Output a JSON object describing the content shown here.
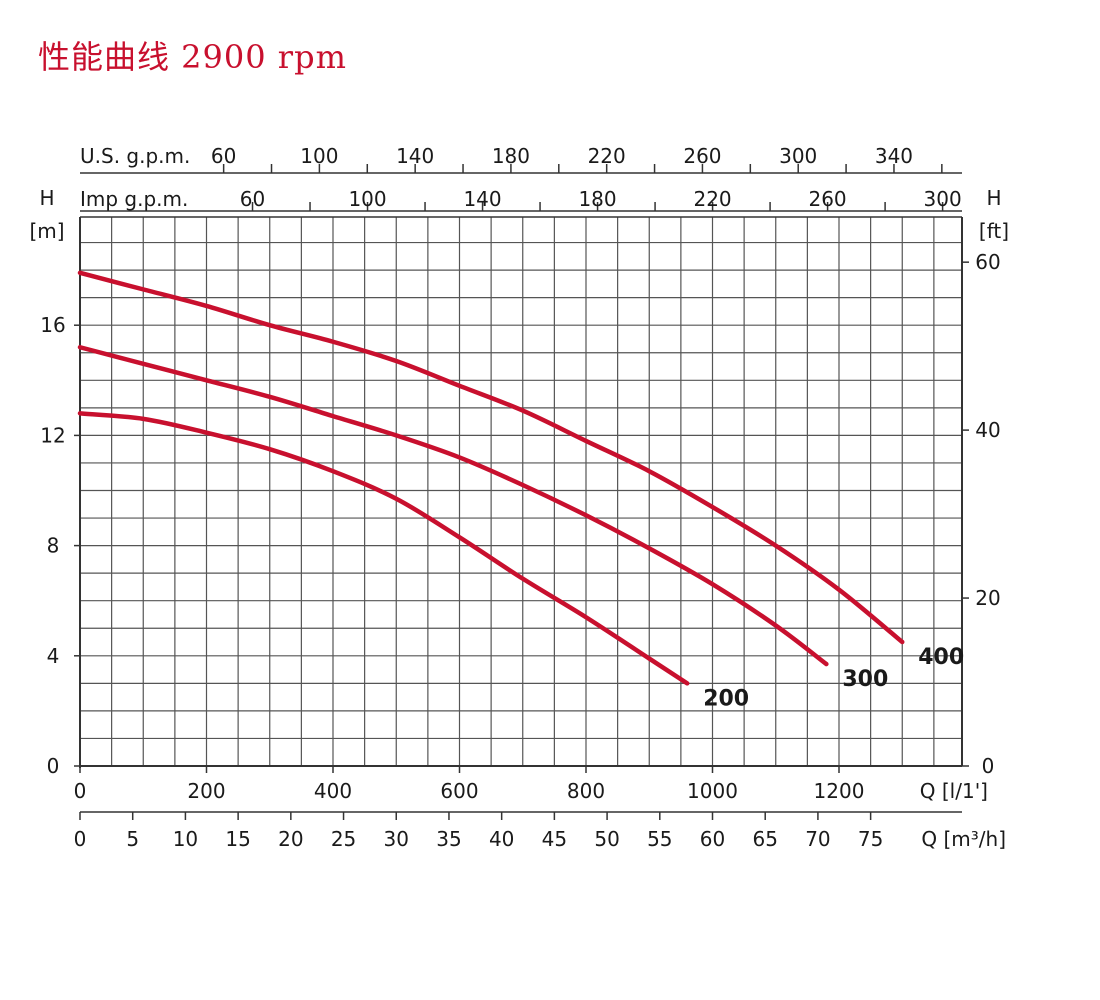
{
  "title": "性能曲线 2900 rpm",
  "colors": {
    "curve": "#c8102e",
    "grid": "#555555",
    "title": "#c8102e"
  },
  "chart_data": {
    "type": "line",
    "title": "性能曲线 2900 rpm",
    "xlabel": "Q [l/1']",
    "xlabel2": "Q [m³/h]",
    "ylabel": "H [m]",
    "ylabel_right": "H [ft]",
    "xlim": [
      0,
      1440
    ],
    "ylim": [
      0,
      18.5
    ],
    "grid": true,
    "x_ticks": [
      "0",
      "200",
      "400",
      "600",
      "800",
      "1000",
      "1200"
    ],
    "m3h_ticks": [
      "0",
      "5",
      "10",
      "15",
      "20",
      "25",
      "30",
      "35",
      "40",
      "45",
      "50",
      "55",
      "60",
      "65",
      "70",
      "75"
    ],
    "y_ticks": [
      "0",
      "4",
      "8",
      "12",
      "16"
    ],
    "ft_ticks": [
      "0",
      "20",
      "40",
      "60"
    ],
    "usgpm_label": "U.S. g.p.m.",
    "usgpm_ticks": [
      "60",
      "100",
      "140",
      "180",
      "220",
      "260",
      "300",
      "340"
    ],
    "impgpm_label": "Imp g.p.m.",
    "impgpm_ticks": [
      "60",
      "100",
      "140",
      "180",
      "220",
      "260",
      "300"
    ],
    "series": [
      {
        "name": "200",
        "x": [
          0,
          100,
          200,
          300,
          400,
          500,
          600,
          700,
          800,
          900,
          960
        ],
        "y": [
          12.8,
          12.6,
          12.1,
          11.5,
          10.7,
          9.7,
          8.3,
          6.8,
          5.4,
          3.9,
          3.0
        ]
      },
      {
        "name": "300",
        "x": [
          0,
          100,
          200,
          300,
          400,
          500,
          600,
          700,
          800,
          900,
          1000,
          1100,
          1180
        ],
        "y": [
          15.2,
          14.6,
          14.0,
          13.4,
          12.7,
          12.0,
          11.2,
          10.2,
          9.1,
          7.9,
          6.6,
          5.1,
          3.7
        ]
      },
      {
        "name": "400",
        "x": [
          0,
          100,
          200,
          300,
          400,
          500,
          600,
          700,
          800,
          900,
          1000,
          1100,
          1200,
          1300
        ],
        "y": [
          17.9,
          17.3,
          16.7,
          16.0,
          15.4,
          14.7,
          13.8,
          12.9,
          11.8,
          10.7,
          9.4,
          8.0,
          6.4,
          4.5
        ]
      }
    ]
  }
}
